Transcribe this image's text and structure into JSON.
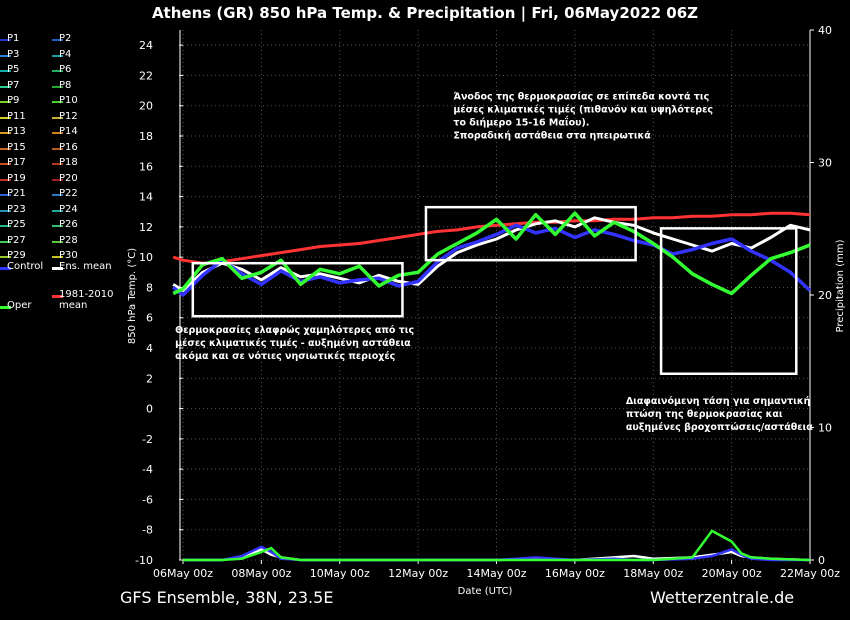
{
  "chart_data": {
    "type": "line",
    "title": "Athens  (GR)  850 hPa Temp. & Precipitation | Fri, 06May2022 06Z",
    "xlabel": "Date (UTC)",
    "ylabel": "850 hPa Temp. (°C)",
    "y2label": "Precipitation (mm)",
    "ylim": [
      -10,
      25
    ],
    "y2lim": [
      0,
      40
    ],
    "yticks": [
      -10,
      -8,
      -6,
      -4,
      -2,
      0,
      2,
      4,
      6,
      8,
      10,
      12,
      14,
      16,
      18,
      20,
      22,
      24
    ],
    "y2ticks": [
      0,
      10,
      20,
      30,
      40
    ],
    "xlim": [
      0,
      16
    ],
    "xticks": [
      {
        "x": 0,
        "label": "06May 00z"
      },
      {
        "x": 2,
        "label": "08May 00z"
      },
      {
        "x": 4,
        "label": "10May 00z"
      },
      {
        "x": 6,
        "label": "12May 00z"
      },
      {
        "x": 8,
        "label": "14May 00z"
      },
      {
        "x": 10,
        "label": "16May 00z"
      },
      {
        "x": 12,
        "label": "18May 00z"
      },
      {
        "x": 14,
        "label": "20May 00z"
      },
      {
        "x": 16,
        "label": "22May 00z"
      }
    ],
    "grid": true,
    "legend_placement": "left",
    "series": [
      {
        "name": "1981-2010 mean",
        "color": "#ff3333",
        "x": [
          -0.25,
          0,
          0.5,
          1,
          1.5,
          2,
          2.5,
          3,
          3.5,
          4,
          4.5,
          5,
          5.5,
          6,
          6.5,
          7,
          7.5,
          8,
          8.5,
          9,
          9.5,
          10,
          10.5,
          11,
          11.5,
          12,
          12.5,
          13,
          13.5,
          14,
          14.5,
          15,
          15.5,
          16
        ],
        "y": [
          10.0,
          9.8,
          9.6,
          9.7,
          9.9,
          10.1,
          10.3,
          10.5,
          10.7,
          10.8,
          10.9,
          11.1,
          11.3,
          11.5,
          11.7,
          11.8,
          12.0,
          12.1,
          12.2,
          12.3,
          12.3,
          12.4,
          12.4,
          12.5,
          12.5,
          12.6,
          12.6,
          12.7,
          12.7,
          12.8,
          12.8,
          12.9,
          12.9,
          12.8
        ]
      },
      {
        "name": "Ens. mean",
        "color": "#ffffff",
        "x": [
          -0.25,
          0,
          0.5,
          1,
          1.5,
          2,
          2.5,
          3,
          3.5,
          4,
          4.5,
          5,
          5.5,
          6,
          6.5,
          7,
          7.5,
          8,
          8.5,
          9,
          9.5,
          10,
          10.5,
          11,
          11.5,
          12,
          12.5,
          13,
          13.5,
          14,
          14.5,
          15,
          15.5,
          16
        ],
        "y": [
          8.2,
          7.8,
          9.0,
          9.6,
          9.2,
          8.5,
          9.3,
          8.7,
          8.9,
          8.6,
          8.3,
          8.8,
          8.4,
          8.2,
          9.4,
          10.3,
          10.8,
          11.2,
          11.8,
          12.2,
          12.4,
          12.0,
          12.6,
          12.3,
          12.1,
          11.6,
          11.2,
          10.8,
          10.4,
          10.9,
          10.6,
          11.3,
          12.1,
          11.8
        ]
      },
      {
        "name": "Control",
        "color": "#3333ff",
        "x": [
          -0.25,
          0,
          0.5,
          1,
          1.5,
          2,
          2.5,
          3,
          3.5,
          4,
          4.5,
          5,
          5.5,
          6,
          6.5,
          7,
          7.5,
          8,
          8.5,
          9,
          9.5,
          10,
          10.5,
          11,
          11.5,
          12,
          12.5,
          13,
          13.5,
          14,
          14.5,
          15,
          15.5,
          16
        ],
        "y": [
          8.0,
          7.5,
          8.8,
          9.8,
          8.9,
          8.2,
          9.1,
          8.4,
          8.7,
          8.3,
          8.5,
          8.6,
          8.1,
          8.4,
          9.7,
          10.6,
          11.0,
          11.5,
          12.1,
          11.6,
          11.9,
          11.3,
          11.8,
          11.5,
          11.1,
          10.8,
          10.2,
          10.5,
          10.9,
          11.2,
          10.4,
          9.8,
          9.0,
          7.8
        ]
      },
      {
        "name": "Oper",
        "color": "#33ff33",
        "x": [
          -0.25,
          0,
          0.5,
          1,
          1.5,
          2,
          2.5,
          3,
          3.5,
          4,
          4.5,
          5,
          5.5,
          6,
          6.5,
          7,
          7.5,
          8,
          8.5,
          9,
          9.5,
          10,
          10.5,
          11,
          11.5,
          12,
          12.5,
          13,
          13.5,
          14,
          14.5,
          15,
          15.5,
          16
        ],
        "y": [
          7.6,
          7.9,
          9.5,
          9.9,
          8.6,
          9.0,
          9.8,
          8.2,
          9.2,
          8.9,
          9.4,
          8.1,
          8.8,
          9.0,
          10.2,
          10.9,
          11.6,
          12.5,
          11.2,
          12.8,
          11.5,
          12.9,
          11.4,
          12.3,
          11.7,
          10.9,
          10.0,
          8.9,
          8.2,
          7.6,
          8.8,
          9.9,
          10.3,
          10.8
        ]
      }
    ],
    "precipitation": [
      {
        "name": "Ens. mean",
        "color": "#ffffff",
        "x": [
          0,
          1,
          1.5,
          2,
          2.25,
          2.5,
          3,
          4,
          5,
          6,
          7,
          8,
          9,
          10,
          11,
          11.5,
          12,
          13,
          13.5,
          14,
          14.25,
          14.5,
          15,
          16
        ],
        "y": [
          0,
          0,
          0.2,
          0.8,
          0.4,
          0.2,
          0,
          0,
          0,
          0,
          0,
          0,
          0.1,
          0,
          0.2,
          0.3,
          0.1,
          0.2,
          0.4,
          0.6,
          0.3,
          0.2,
          0.1,
          0
        ]
      },
      {
        "name": "Control",
        "color": "#3333ff",
        "x": [
          0,
          1,
          1.5,
          2,
          2.25,
          2.5,
          3,
          4,
          5,
          6,
          7,
          8,
          9,
          10,
          11,
          11.5,
          12,
          13,
          13.5,
          14,
          14.25,
          14.5,
          15,
          16
        ],
        "y": [
          0,
          0,
          0.3,
          1.0,
          0.6,
          0.1,
          0,
          0,
          0,
          0,
          0,
          0,
          0.2,
          0,
          0.1,
          0,
          0,
          0.1,
          0.3,
          0.8,
          0.4,
          0.1,
          0,
          0
        ]
      },
      {
        "name": "Oper",
        "color": "#33ff33",
        "x": [
          0,
          1,
          1.5,
          2,
          2.25,
          2.5,
          3,
          4,
          5,
          6,
          7,
          8,
          9,
          10,
          11,
          11.5,
          12,
          13,
          13.5,
          14,
          14.25,
          14.5,
          15,
          16
        ],
        "y": [
          0,
          0,
          0.1,
          0.6,
          0.9,
          0.2,
          0,
          0,
          0,
          0,
          0,
          0,
          0,
          0,
          0,
          0,
          0,
          0.2,
          2.2,
          1.4,
          0.5,
          0.2,
          0.1,
          0
        ]
      }
    ],
    "annotations": [
      {
        "text": [
          "Άνοδος της θερμοκρασίας σε επίπεδα κοντά τις",
          "μέσες κλιματικές τιμές (πιθανόν και υψηλότερες",
          "το διήμερο 15-16 Μαΐου).",
          "Σποραδική αστάθεια στα ηπειρωτικά"
        ],
        "x": 6.9,
        "y": 20.4
      },
      {
        "text": [
          "Θερμοκρασίες ελαφρώς χαμηλότερες από τις",
          "μέσες κλιματικές τιμές - αυξημένη αστάθεια",
          "ακόμα και σε νότιες νησιωτικές περιοχές"
        ],
        "x": -0.2,
        "y": 5.0
      },
      {
        "text": [
          "Διαφαινόμενη τάση για σημαντική",
          "πτώση της θερμοκρασίας και",
          "αυξημένες βροχοπτώσεις/αστάθεια"
        ],
        "x": 11.3,
        "y": 0.3
      }
    ],
    "boxes": [
      {
        "x0": 0.25,
        "x1": 5.6,
        "y0": 6.1,
        "y1": 9.6
      },
      {
        "x0": 6.2,
        "x1": 11.55,
        "y0": 9.8,
        "y1": 13.3
      },
      {
        "x0": 12.2,
        "x1": 15.65,
        "y0": 2.3,
        "y1": 11.9
      }
    ]
  },
  "legend": [
    {
      "label": "P1",
      "color": "#2233cc"
    },
    {
      "label": "P2",
      "color": "#1d5fbf"
    },
    {
      "label": "P3",
      "color": "#2a7fd8"
    },
    {
      "label": "P4",
      "color": "#1aa0a0"
    },
    {
      "label": "P5",
      "color": "#13b0b0"
    },
    {
      "label": "P6",
      "color": "#20b060"
    },
    {
      "label": "P7",
      "color": "#2fcf8f"
    },
    {
      "label": "P8",
      "color": "#22aa33"
    },
    {
      "label": "P9",
      "color": "#7fd02a"
    },
    {
      "label": "P10",
      "color": "#4bd12f"
    },
    {
      "label": "P11",
      "color": "#d0d020"
    },
    {
      "label": "P12",
      "color": "#c9b030"
    },
    {
      "label": "P13",
      "color": "#d89a20"
    },
    {
      "label": "P14",
      "color": "#d07a18"
    },
    {
      "label": "P15",
      "color": "#c86a2a"
    },
    {
      "label": "P16",
      "color": "#b85a20"
    },
    {
      "label": "P17",
      "color": "#c84d20"
    },
    {
      "label": "P18",
      "color": "#b43a1a"
    },
    {
      "label": "P19",
      "color": "#c2302a"
    },
    {
      "label": "P20",
      "color": "#a02020"
    },
    {
      "label": "P21",
      "color": "#3060d0"
    },
    {
      "label": "P22",
      "color": "#2a78c8"
    },
    {
      "label": "P23",
      "color": "#2a90b0"
    },
    {
      "label": "P24",
      "color": "#22a898"
    },
    {
      "label": "P25",
      "color": "#20b880"
    },
    {
      "label": "P26",
      "color": "#30c070"
    },
    {
      "label": "P27",
      "color": "#40c858"
    },
    {
      "label": "P28",
      "color": "#58c840"
    },
    {
      "label": "P29",
      "color": "#98c830"
    },
    {
      "label": "P30",
      "color": "#c8c020"
    },
    {
      "label": "Control",
      "color": "#3333ff"
    },
    {
      "label": "Ens. mean",
      "color": "#ffffff"
    },
    {
      "label": "1981-2010 mean",
      "color": "#ff3333"
    },
    {
      "label": "Oper",
      "color": "#33ff33"
    }
  ],
  "footer": {
    "model": "GFS Ensemble, 38N, 23.5E",
    "site": "Wetterzentrale.de"
  }
}
